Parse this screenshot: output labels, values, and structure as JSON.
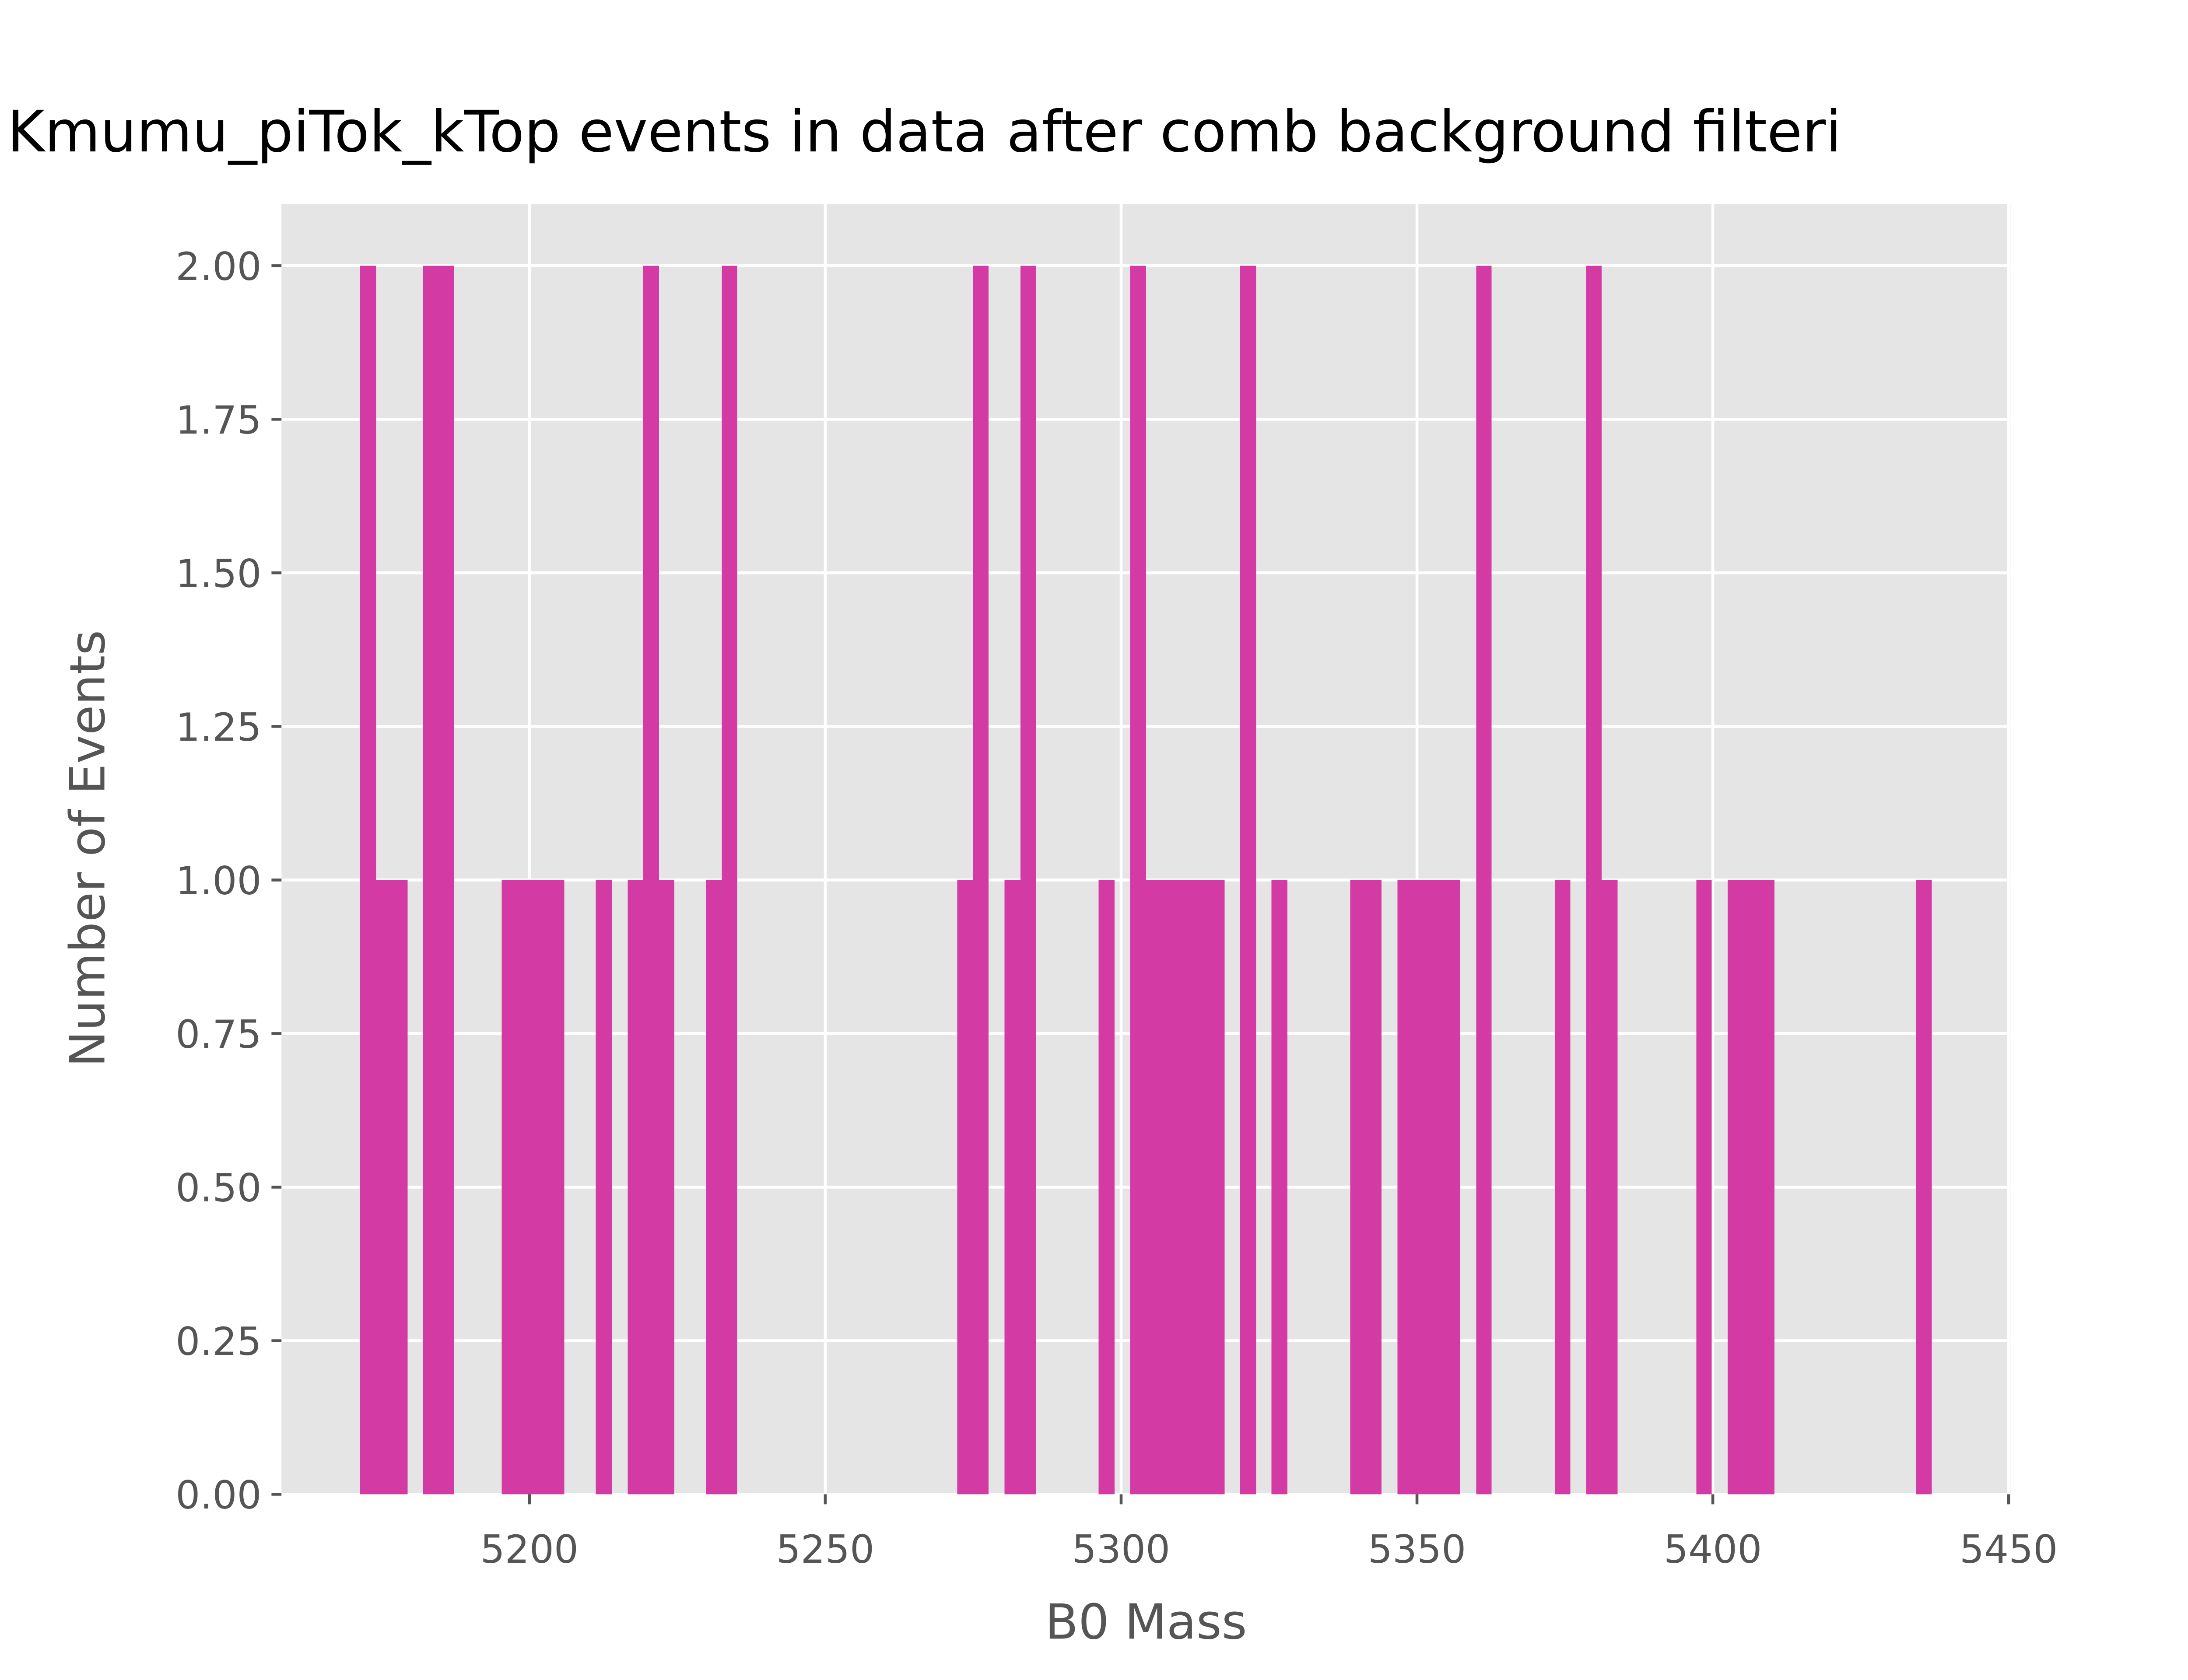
{
  "chart_data": {
    "type": "histogram",
    "title": "Kmumu_piTok_kTop events in data after comb background filteri",
    "x_label": "B0 Mass",
    "y_label": "Number of Events",
    "color": "#d43aa4",
    "grid": true,
    "bins": [
      5171.4,
      5174.1,
      5176.7,
      5179.4,
      5182.0,
      5184.7,
      5187.3,
      5190.0,
      5192.6,
      5195.3,
      5198.0,
      5200.6,
      5203.3,
      5205.9,
      5208.6,
      5211.2,
      5213.9,
      5216.6,
      5219.2,
      5221.9,
      5224.5,
      5227.2,
      5229.8,
      5232.5,
      5235.1,
      5237.8,
      5240.5,
      5243.1,
      5245.8,
      5248.4,
      5251.1,
      5253.7,
      5256.4,
      5259.0,
      5261.7,
      5264.4,
      5267.0,
      5269.7,
      5272.3,
      5275.0,
      5277.6,
      5280.3,
      5283.0,
      5285.6,
      5288.3,
      5290.9,
      5293.6,
      5296.2,
      5298.9,
      5301.5,
      5304.2,
      5306.9,
      5309.5,
      5312.2,
      5314.8,
      5317.5,
      5320.1,
      5322.8,
      5325.4,
      5328.1,
      5330.8,
      5333.4,
      5336.1,
      5338.7,
      5341.4,
      5344.0,
      5346.7,
      5349.4,
      5352.0,
      5354.7,
      5357.3,
      5360.0,
      5362.6,
      5365.3,
      5367.9,
      5370.6,
      5373.3,
      5375.9,
      5378.6,
      5381.2,
      5383.9,
      5386.5,
      5389.2,
      5391.8,
      5394.5,
      5397.2,
      5399.8,
      5402.5,
      5405.1,
      5407.8,
      5410.4,
      5413.1,
      5415.8,
      5418.4,
      5421.1,
      5423.7,
      5426.4,
      5429.0,
      5431.7,
      5434.3,
      5437.0
    ],
    "values": [
      2,
      1,
      1,
      0,
      2,
      2,
      0,
      0,
      0,
      1,
      1,
      1,
      1,
      0,
      0,
      1,
      0,
      1,
      2,
      1,
      0,
      0,
      1,
      2,
      0,
      0,
      0,
      0,
      0,
      0,
      0,
      0,
      0,
      0,
      0,
      0,
      0,
      0,
      1,
      2,
      0,
      1,
      2,
      0,
      0,
      0,
      0,
      1,
      0,
      2,
      1,
      1,
      1,
      1,
      1,
      0,
      2,
      0,
      1,
      0,
      0,
      0,
      0,
      1,
      1,
      0,
      1,
      1,
      1,
      1,
      0,
      2,
      0,
      0,
      0,
      0,
      1,
      0,
      2,
      1,
      0,
      0,
      0,
      0,
      0,
      1,
      0,
      1,
      1,
      1,
      0,
      0,
      0,
      0,
      0,
      0,
      0,
      0,
      0,
      1
    ],
    "xlim": [
      5158.1,
      5450.3
    ],
    "xticks": [
      5200,
      5250,
      5300,
      5350,
      5400,
      5450
    ],
    "ylim": [
      0,
      2.1
    ],
    "yticks": [
      {
        "value": 0,
        "label": "0.00"
      },
      {
        "value": 0.25,
        "label": "0.25"
      },
      {
        "value": 0.5,
        "label": "0.50"
      },
      {
        "value": 0.75,
        "label": "0.75"
      },
      {
        "value": 1,
        "label": "1.00"
      },
      {
        "value": 1.25,
        "label": "1.25"
      },
      {
        "value": 1.5,
        "label": "1.50"
      },
      {
        "value": 1.75,
        "label": "1.75"
      },
      {
        "value": 2,
        "label": "2.00"
      }
    ]
  }
}
